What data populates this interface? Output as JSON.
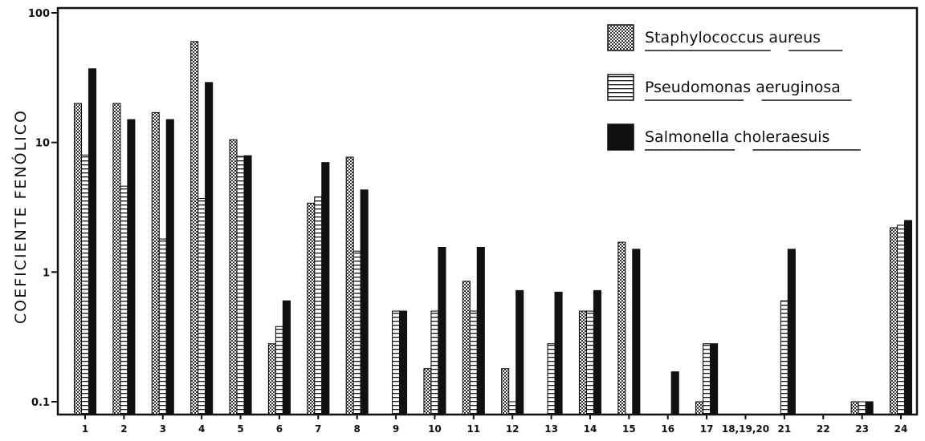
{
  "chart_data": {
    "type": "bar",
    "title": "",
    "xlabel": "",
    "ylabel": "COEFICIENTE  FENÓLICO",
    "yscale": "log",
    "ylim": [
      0.08,
      100
    ],
    "yticks": [
      "0.1",
      "1",
      "10",
      "100"
    ],
    "legend_position": "top-right",
    "grid": false,
    "categories": [
      "1",
      "2",
      "3",
      "4",
      "5",
      "6",
      "7",
      "8",
      "9",
      "10",
      "11",
      "12",
      "13",
      "14",
      "15",
      "16",
      "17",
      "18,19,20",
      "21",
      "22",
      "23",
      "24"
    ],
    "series": [
      {
        "name": "Staphylococcus aureus",
        "pattern": "dotted",
        "values": [
          20,
          20,
          17,
          60,
          10.5,
          0.28,
          3.4,
          7.7,
          0.08,
          0.18,
          0.85,
          0.18,
          0.08,
          0.5,
          1.7,
          0.08,
          0.1,
          0.08,
          0.08,
          0.08,
          0.1,
          2.2
        ]
      },
      {
        "name": "Pseudomonas aeruginosa",
        "pattern": "horizontal-lines",
        "values": [
          8,
          4.6,
          1.8,
          3.7,
          7.8,
          0.38,
          3.8,
          1.45,
          0.5,
          0.5,
          0.5,
          0.1,
          0.28,
          0.5,
          0.08,
          0.08,
          0.28,
          0.08,
          0.6,
          0.08,
          0.1,
          2.3
        ]
      },
      {
        "name": "Salmonella choleraesuis",
        "pattern": "solid",
        "values": [
          37,
          15,
          15,
          29,
          7.9,
          0.6,
          7,
          4.3,
          0.5,
          1.55,
          1.55,
          0.72,
          0.7,
          0.72,
          1.5,
          0.17,
          0.28,
          0.08,
          1.5,
          0.08,
          0.1,
          2.5
        ]
      }
    ]
  }
}
